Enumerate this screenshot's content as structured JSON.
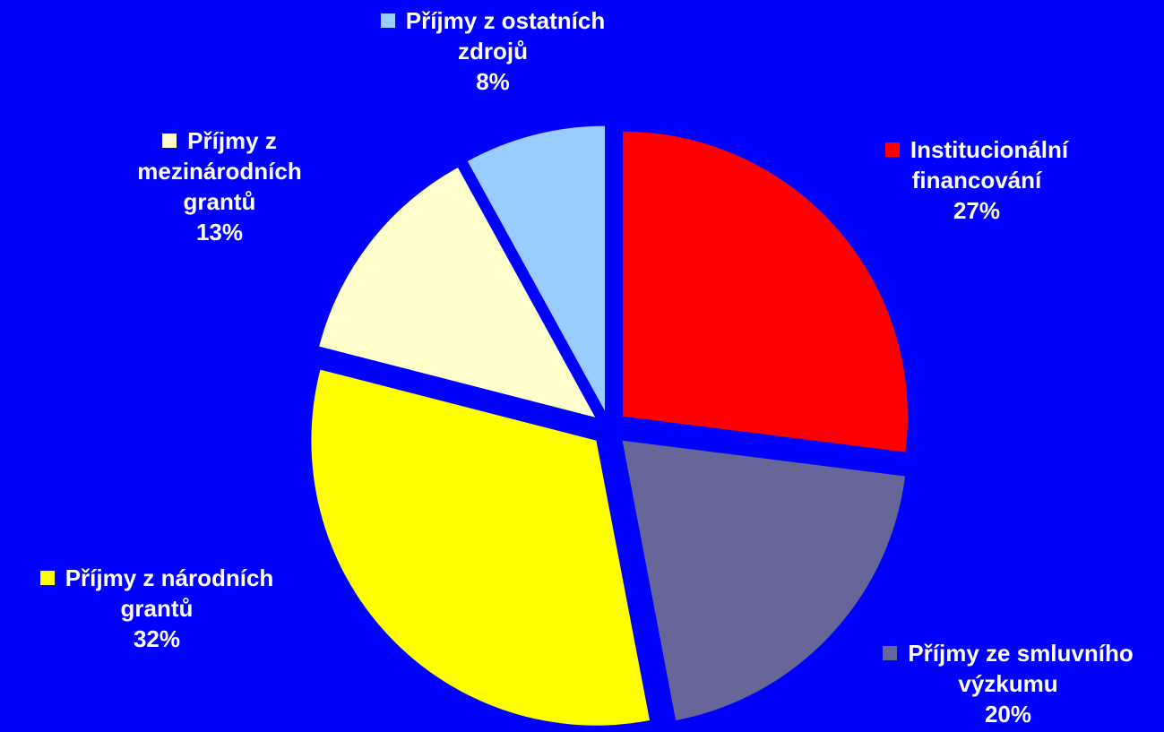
{
  "chart_data": {
    "type": "pie",
    "categories": [
      "Institucionální financování",
      "Příjmy ze smluvního výzkumu",
      "Příjmy z národních grantů",
      "Příjmy z mezinárodních grantů",
      "Příjmy z ostatních zdrojů"
    ],
    "values": [
      27,
      20,
      32,
      13,
      8
    ],
    "value_labels": [
      "27%",
      "20%",
      "32%",
      "13%",
      "8%"
    ],
    "colors": [
      "#ff0000",
      "#666699",
      "#ffff00",
      "#ffffcc",
      "#99ccff"
    ],
    "background": "#0000ff"
  }
}
